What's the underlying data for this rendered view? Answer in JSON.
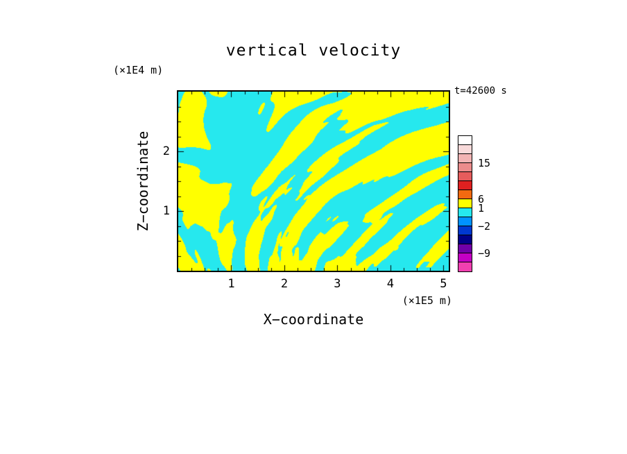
{
  "page": {
    "background": "#ffffff",
    "text_color": "#000000"
  },
  "chart_data": {
    "type": "heatmap",
    "title": "vertical velocity",
    "timestamp": "t=42600 s",
    "xlabel": "X−coordinate",
    "ylabel": "Z−coordinate",
    "x_units": "(×1E5 m)",
    "y_units": "(×1E4 m)",
    "xlim": [
      0,
      5.1
    ],
    "ylim": [
      0,
      3.0
    ],
    "x_ticks": [
      1,
      2,
      3,
      4,
      5
    ],
    "y_ticks": [
      1,
      2
    ],
    "grid": false,
    "legend_position": "right-colorbar",
    "field": {
      "description": "Two-level thresholded vertical-velocity cross-section: yellow = updrafts (level band 1 to 6), cyan = weak/negative velocity (level band −2 to 1). Fine vertical plume streaks near the lower boundary merge into broader, slightly tilted structures aloft; the uppermost region is mostly cyan with scattered larger yellow patches.",
      "positive_color": "#ffff00",
      "negative_color": "#26e8ee",
      "positive_level_range": [
        1,
        6
      ],
      "negative_level_range": [
        -2,
        1
      ],
      "noise_seed": 7
    },
    "colorbar": {
      "segment_colors": [
        "#ffffff",
        "#f8dada",
        "#f2b4b4",
        "#ec8c8c",
        "#e65c5c",
        "#e02020",
        "#f26a10",
        "#ffff00",
        "#26e8ee",
        "#0092ff",
        "#0038d0",
        "#000088",
        "#7000a8",
        "#c400c4",
        "#f040b0"
      ],
      "labels": [
        {
          "text": "15",
          "boundary": 3
        },
        {
          "text": "6",
          "boundary": 7
        },
        {
          "text": "1",
          "boundary": 8
        },
        {
          "text": "−2",
          "boundary": 10
        },
        {
          "text": "−9",
          "boundary": 13
        }
      ]
    }
  }
}
